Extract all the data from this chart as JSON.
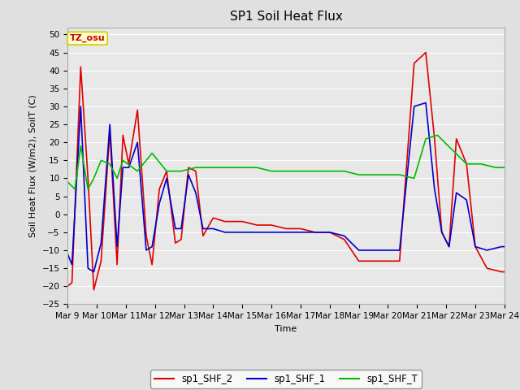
{
  "title": "SP1 Soil Heat Flux",
  "xlabel": "Time",
  "ylabel": "Soil Heat Flux (W/m2), SoilT (C)",
  "ylim": [
    -25,
    52
  ],
  "yticks": [
    -25,
    -20,
    -15,
    -10,
    -5,
    0,
    5,
    10,
    15,
    20,
    25,
    30,
    35,
    40,
    45,
    50
  ],
  "xlim": [
    0,
    15
  ],
  "xtick_labels": [
    "Mar 9",
    "Mar 10",
    "Mar 11",
    "Mar 12",
    "Mar 13",
    "Mar 14",
    "Mar 15",
    "Mar 16",
    "Mar 17",
    "Mar 18",
    "Mar 19",
    "Mar 20",
    "Mar 21",
    "Mar 22",
    "Mar 23",
    "Mar 24"
  ],
  "color_shf2": "#dd0000",
  "color_shf1": "#0000cc",
  "color_shft": "#00bb00",
  "bg_color": "#e0e0e0",
  "plot_bg": "#e8e8e8",
  "annotation_text": "TZ_osu",
  "annotation_color": "#cc0000",
  "annotation_bg": "#ffffcc",
  "annotation_border": "#cccc00",
  "legend_labels": [
    "sp1_SHF_2",
    "sp1_SHF_1",
    "sp1_SHF_T"
  ],
  "linewidth": 1.2,
  "title_fontsize": 11,
  "axis_fontsize": 8,
  "tick_fontsize": 7.5,
  "sp1_SHF_2_x": [
    0.0,
    0.15,
    0.45,
    0.7,
    0.9,
    1.15,
    1.45,
    1.7,
    1.9,
    2.1,
    2.4,
    2.7,
    2.9,
    3.15,
    3.4,
    3.7,
    3.9,
    4.15,
    4.4,
    4.65,
    5.0,
    5.4,
    6.0,
    6.5,
    7.0,
    7.5,
    8.0,
    8.5,
    9.0,
    9.5,
    10.0,
    10.5,
    11.0,
    11.4,
    11.9,
    12.3,
    12.6,
    12.85,
    13.1,
    13.35,
    13.7,
    14.0,
    14.4,
    14.9,
    15.0
  ],
  "sp1_SHF_2_y": [
    -20,
    -19,
    41,
    10,
    -21,
    -13,
    23,
    -14,
    22,
    14,
    29,
    -6,
    -14,
    7,
    12,
    -8,
    -7,
    13,
    12,
    -6,
    -1,
    -2,
    -2,
    -3,
    -3,
    -4,
    -4,
    -5,
    -5,
    -7,
    -13,
    -13,
    -13,
    -13,
    42,
    45,
    21,
    -5,
    -9,
    21,
    14,
    -9,
    -15,
    -16,
    -16
  ],
  "sp1_SHF_1_x": [
    0.0,
    0.15,
    0.45,
    0.7,
    0.9,
    1.15,
    1.45,
    1.7,
    1.9,
    2.1,
    2.4,
    2.7,
    2.9,
    3.15,
    3.4,
    3.7,
    3.9,
    4.15,
    4.4,
    4.65,
    5.0,
    5.4,
    6.0,
    6.5,
    7.0,
    7.5,
    8.0,
    8.5,
    9.0,
    9.5,
    10.0,
    10.5,
    11.0,
    11.4,
    11.9,
    12.3,
    12.6,
    12.85,
    13.1,
    13.35,
    13.7,
    14.0,
    14.4,
    14.9,
    15.0
  ],
  "sp1_SHF_1_y": [
    -11,
    -14,
    30,
    -15,
    -16,
    -8,
    25,
    -9,
    13,
    13,
    20,
    -10,
    -9,
    3,
    10,
    -4,
    -4,
    11,
    6,
    -4,
    -4,
    -5,
    -5,
    -5,
    -5,
    -5,
    -5,
    -5,
    -5,
    -6,
    -10,
    -10,
    -10,
    -10,
    30,
    31,
    7,
    -5,
    -9,
    6,
    4,
    -9,
    -10,
    -9,
    -9
  ],
  "sp1_SHF_T_x": [
    0.0,
    0.25,
    0.45,
    0.7,
    0.9,
    1.15,
    1.45,
    1.7,
    1.9,
    2.4,
    2.9,
    3.4,
    3.9,
    4.4,
    5.0,
    5.4,
    6.0,
    6.5,
    7.0,
    7.5,
    8.0,
    8.5,
    9.0,
    9.5,
    10.0,
    10.5,
    11.0,
    11.4,
    11.9,
    12.3,
    12.7,
    13.2,
    13.7,
    14.2,
    14.7,
    15.0
  ],
  "sp1_SHF_T_y": [
    9,
    7,
    19,
    7,
    10,
    15,
    14,
    10,
    15,
    12,
    17,
    12,
    12,
    13,
    13,
    13,
    13,
    13,
    12,
    12,
    12,
    12,
    12,
    12,
    11,
    11,
    11,
    11,
    10,
    21,
    22,
    18,
    14,
    14,
    13,
    13
  ]
}
